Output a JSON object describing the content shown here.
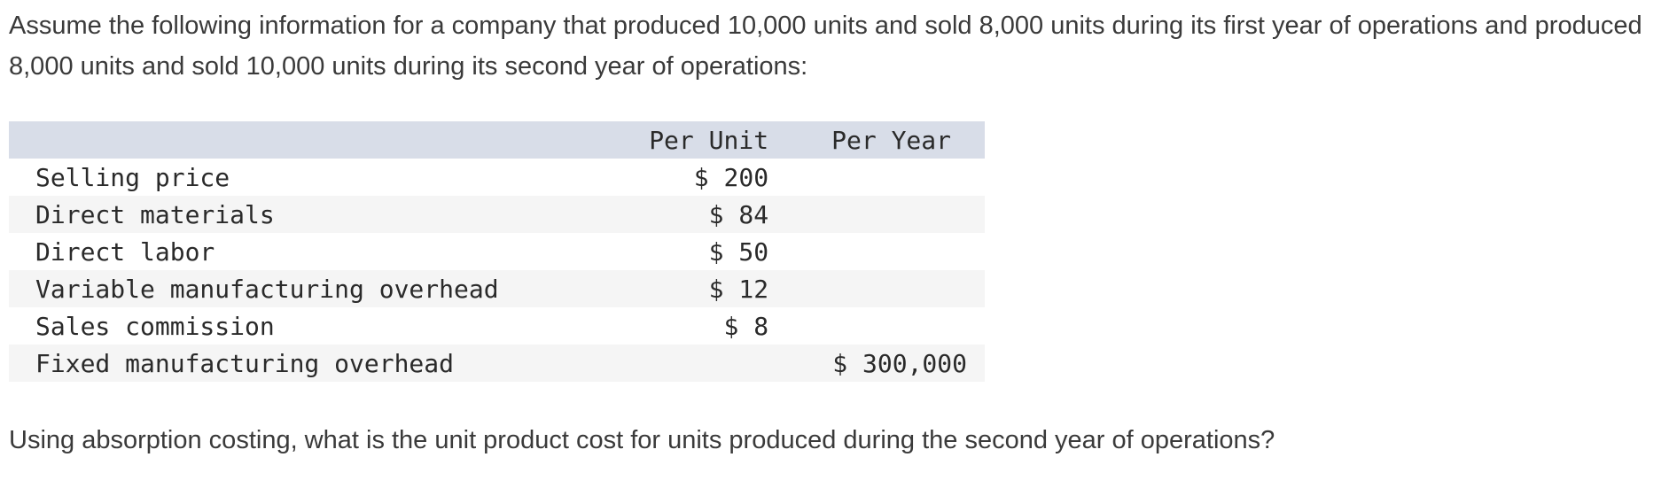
{
  "intro_text": "Assume the following information for a company that produced 10,000 units and sold 8,000 units during its first year of operations and produced 8,000 units and sold 10,000 units during its second year of operations:",
  "table": {
    "headers": {
      "label": "",
      "per_unit": "Per Unit",
      "per_year": "Per Year"
    },
    "rows": [
      {
        "label": "Selling price",
        "per_unit": "$ 200",
        "per_year": ""
      },
      {
        "label": "Direct materials",
        "per_unit": "$ 84",
        "per_year": ""
      },
      {
        "label": "Direct labor",
        "per_unit": "$ 50",
        "per_year": ""
      },
      {
        "label": "Variable manufacturing overhead",
        "per_unit": "$ 12",
        "per_year": ""
      },
      {
        "label": "Sales commission",
        "per_unit": "$ 8",
        "per_year": ""
      },
      {
        "label": "Fixed manufacturing overhead",
        "per_unit": "",
        "per_year": "$ 300,000"
      }
    ]
  },
  "question_text": "Using absorption costing, what is the unit product cost for units produced during the second year of operations?"
}
